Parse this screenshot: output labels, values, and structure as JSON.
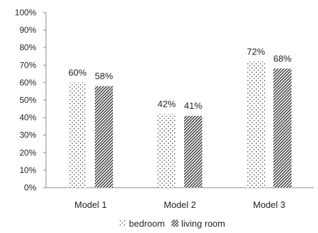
{
  "chart_data": {
    "type": "bar",
    "title": "",
    "xlabel": "",
    "ylabel": "",
    "categories": [
      "Model 1",
      "Model 2",
      "Model 3"
    ],
    "series": [
      {
        "name": "bedroom",
        "values": [
          60,
          42,
          72
        ],
        "pattern": "dots",
        "color": "#333333"
      },
      {
        "name": "living room",
        "values": [
          58,
          41,
          68
        ],
        "pattern": "diagonal-hatch",
        "color": "#333333"
      }
    ],
    "data_labels": [
      [
        "60%",
        "42%",
        "72%"
      ],
      [
        "58%",
        "41%",
        "68%"
      ]
    ],
    "ylim": [
      0,
      100
    ],
    "yticks": [
      0,
      10,
      20,
      30,
      40,
      50,
      60,
      70,
      80,
      90,
      100
    ],
    "ytick_labels": [
      "0%",
      "10%",
      "20%",
      "30%",
      "40%",
      "50%",
      "60%",
      "70%",
      "80%",
      "90%",
      "100%"
    ],
    "grid": false,
    "legend_position": "bottom"
  }
}
